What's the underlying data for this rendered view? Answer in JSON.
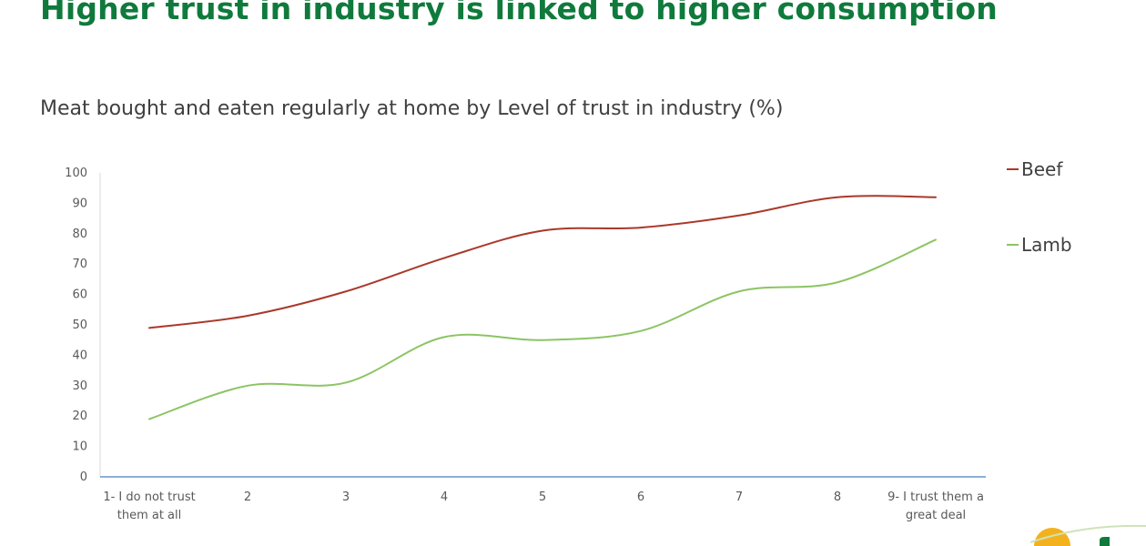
{
  "slide": {
    "title": "Higher trust in industry is linked to higher consumption",
    "title_color": "#0f7a3c"
  },
  "chart_data": {
    "type": "line",
    "title": "Meat bought and eaten regularly at home by Level of trust in industry (%)",
    "categories": [
      [
        "1- I do not trust",
        "them at all"
      ],
      [
        "2"
      ],
      [
        "3"
      ],
      [
        "4"
      ],
      [
        "5"
      ],
      [
        "6"
      ],
      [
        "7"
      ],
      [
        "8"
      ],
      [
        "9- I trust them a",
        "great deal"
      ]
    ],
    "series": [
      {
        "name": "Beef",
        "color": "#a9392a",
        "values": [
          49,
          53,
          61,
          72,
          81,
          82,
          86,
          92,
          92
        ]
      },
      {
        "name": "Lamb",
        "color": "#8cc464",
        "values": [
          19,
          30,
          31,
          46,
          45,
          48,
          61,
          64,
          78
        ]
      }
    ],
    "ylim": [
      0,
      100
    ],
    "yticks": [
      0,
      10,
      20,
      30,
      40,
      50,
      60,
      70,
      80,
      90,
      100
    ],
    "legend_position": "right",
    "grid": false,
    "axis_color": "#4a7fc1",
    "smooth": true
  },
  "logo": {
    "icon": "sun-logo-icon",
    "sun_color": "#f3b21d",
    "swoosh_color": "#cfe3b8",
    "mark_color": "#0f7a3c"
  }
}
